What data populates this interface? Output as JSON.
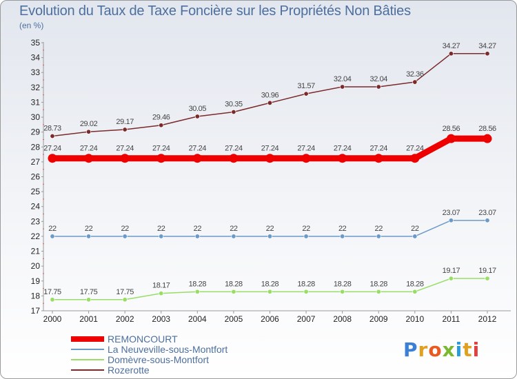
{
  "title": "Evolution du Taux de Taxe Foncière sur les Propriétés Non Bâties",
  "unit_label": "(en %)",
  "logo_text": "Proxiti",
  "chart_data": {
    "type": "line",
    "title": "Evolution du Taux de Taxe Foncière sur les Propriétés Non Bâties",
    "ylabel": "(en %)",
    "xlabel": "",
    "categories": [
      "2000",
      "2001",
      "2002",
      "2003",
      "2004",
      "2005",
      "2006",
      "2007",
      "2008",
      "2009",
      "2010",
      "2011",
      "2012"
    ],
    "ylim": [
      17,
      35
    ],
    "yticks": [
      17,
      18,
      19,
      20,
      21,
      22,
      23,
      24,
      25,
      26,
      27,
      28,
      29,
      30,
      31,
      32,
      33,
      34,
      35
    ],
    "legend_position": "bottom-left",
    "series": [
      {
        "name": "REMONCOURT",
        "color": "#ee0000",
        "values": [
          27.24,
          27.24,
          27.24,
          27.24,
          27.24,
          27.24,
          27.24,
          27.24,
          27.24,
          27.24,
          27.24,
          28.56,
          28.56
        ],
        "labels": [
          "27.24",
          "27.24",
          "27.24",
          "27.24",
          "27.24",
          "27.24",
          "27.24",
          "27.24",
          "27.24",
          "27.24",
          "27.24",
          "28.56",
          "28.56"
        ]
      },
      {
        "name": "La Neuveville-sous-Montfort",
        "color": "#6b9ac8",
        "values": [
          22,
          22,
          22,
          22,
          22,
          22,
          22,
          22,
          22,
          22,
          22,
          23.07,
          23.07
        ],
        "labels": [
          "22",
          "22",
          "22",
          "22",
          "22",
          "22",
          "22",
          "22",
          "22",
          "22",
          "22",
          "23.07",
          "23.07"
        ]
      },
      {
        "name": "Domèvre-sous-Montfort",
        "color": "#99dd66",
        "values": [
          17.75,
          17.75,
          17.75,
          18.17,
          18.28,
          18.28,
          18.28,
          18.28,
          18.28,
          18.28,
          18.28,
          19.17,
          19.17
        ],
        "labels": [
          "17.75",
          "17.75",
          "17.75",
          "18.17",
          "18.28",
          "18.28",
          "18.28",
          "18.28",
          "18.28",
          "18.28",
          "18.28",
          "19.17",
          "19.17"
        ]
      },
      {
        "name": "Rozerotte",
        "color": "#7a2a2a",
        "values": [
          28.73,
          29.02,
          29.17,
          29.46,
          30.05,
          30.35,
          30.96,
          31.57,
          32.04,
          32.04,
          32.36,
          34.27,
          34.27
        ],
        "labels": [
          "28.73",
          "29.02",
          "29.17",
          "29.46",
          "30.05",
          "30.35",
          "30.96",
          "31.57",
          "32.04",
          "32.04",
          "32.36",
          "34.27",
          "34.27"
        ]
      }
    ]
  }
}
